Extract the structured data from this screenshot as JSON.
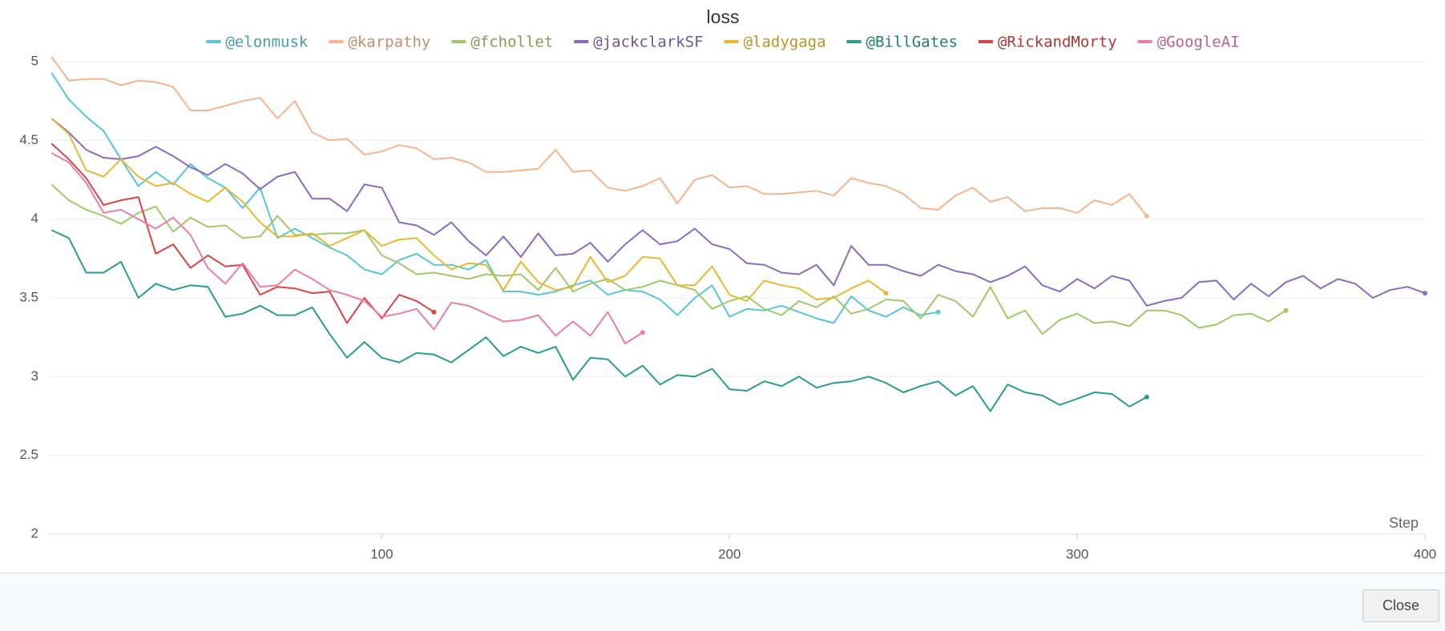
{
  "chart_data": {
    "type": "line",
    "title": "loss",
    "x_label": "Step",
    "x": [
      5,
      10,
      15,
      20,
      25,
      30,
      35,
      40,
      45,
      50,
      55,
      60,
      65,
      70,
      75,
      80,
      85,
      90,
      95,
      100,
      105,
      110,
      115,
      120,
      125,
      130,
      135,
      140,
      145,
      150,
      155,
      160,
      165,
      170,
      175,
      180,
      185,
      190,
      195,
      200,
      205,
      210,
      215,
      220,
      225,
      230,
      235,
      240,
      245,
      250,
      255,
      260,
      265,
      270,
      275,
      280,
      285,
      290,
      295,
      300,
      305,
      310,
      315,
      320,
      325,
      330,
      335,
      340,
      345,
      350,
      355,
      360,
      365,
      370,
      375,
      380,
      385,
      390,
      395,
      400
    ],
    "xlim": [
      0,
      400
    ],
    "xticks": [
      100,
      200,
      300,
      400
    ],
    "ylim": [
      2,
      5
    ],
    "yticks": [
      2,
      2.5,
      3,
      3.5,
      4,
      4.5,
      5
    ],
    "grid": true,
    "series": [
      {
        "name": "@elonmusk",
        "color": "#58c5dc",
        "values": [
          4.93,
          4.76,
          4.65,
          4.56,
          4.38,
          4.21,
          4.3,
          4.22,
          4.35,
          4.26,
          4.2,
          4.07,
          4.2,
          3.88,
          3.94,
          3.88,
          3.82,
          3.77,
          3.68,
          3.65,
          3.74,
          3.78,
          3.71,
          3.71,
          3.68,
          3.74,
          3.54,
          3.54,
          3.52,
          3.54,
          3.58,
          3.61,
          3.52,
          3.55,
          3.54,
          3.49,
          3.39,
          3.5,
          3.58,
          3.38,
          3.43,
          3.42,
          3.45,
          3.41,
          3.37,
          3.34,
          3.51,
          3.42,
          3.38,
          3.44,
          3.39,
          3.41,
          null,
          null,
          null,
          null,
          null,
          null,
          null,
          null,
          null,
          null,
          null,
          null,
          null,
          null,
          null,
          null,
          null,
          null,
          null,
          null,
          null,
          null,
          null,
          null,
          null,
          null,
          null,
          null
        ]
      },
      {
        "name": "@karpathy",
        "color": "#f4b58f",
        "values": [
          5.03,
          4.88,
          4.89,
          4.89,
          4.85,
          4.88,
          4.87,
          4.84,
          4.69,
          4.69,
          4.72,
          4.75,
          4.77,
          4.64,
          4.75,
          4.55,
          4.5,
          4.51,
          4.41,
          4.43,
          4.47,
          4.45,
          4.38,
          4.39,
          4.36,
          4.3,
          4.3,
          4.31,
          4.32,
          4.44,
          4.3,
          4.31,
          4.2,
          4.18,
          4.21,
          4.26,
          4.1,
          4.25,
          4.28,
          4.2,
          4.21,
          4.16,
          4.16,
          4.17,
          4.18,
          4.15,
          4.26,
          4.23,
          4.21,
          4.16,
          4.07,
          4.06,
          4.15,
          4.2,
          4.11,
          4.14,
          4.05,
          4.07,
          4.07,
          4.04,
          4.12,
          4.09,
          4.16,
          4.02,
          null,
          null,
          null,
          null,
          null,
          null,
          null,
          null,
          null,
          null,
          null,
          null,
          null,
          null,
          null,
          null
        ]
      },
      {
        "name": "@fchollet",
        "color": "#a0c96a",
        "values": [
          4.22,
          4.12,
          4.06,
          4.02,
          3.97,
          4.04,
          4.08,
          3.92,
          4.01,
          3.95,
          3.96,
          3.88,
          3.89,
          4.02,
          3.9,
          3.9,
          3.91,
          3.91,
          3.93,
          3.77,
          3.72,
          3.65,
          3.66,
          3.64,
          3.62,
          3.65,
          3.64,
          3.65,
          3.55,
          3.69,
          3.54,
          3.59,
          3.62,
          3.55,
          3.57,
          3.61,
          3.58,
          3.55,
          3.43,
          3.48,
          3.51,
          3.43,
          3.39,
          3.48,
          3.44,
          3.51,
          3.4,
          3.43,
          3.49,
          3.48,
          3.37,
          3.52,
          3.48,
          3.38,
          3.57,
          3.37,
          3.42,
          3.27,
          3.36,
          3.4,
          3.34,
          3.35,
          3.32,
          3.42,
          3.42,
          3.39,
          3.31,
          3.33,
          3.39,
          3.4,
          3.35,
          3.42,
          null,
          null,
          null,
          null,
          null,
          null,
          null,
          null
        ]
      },
      {
        "name": "@jackclarkSF",
        "color": "#8c6bbf",
        "values": [
          4.64,
          4.55,
          4.44,
          4.39,
          4.38,
          4.4,
          4.46,
          4.4,
          4.33,
          4.28,
          4.35,
          4.29,
          4.19,
          4.27,
          4.3,
          4.13,
          4.13,
          4.05,
          4.22,
          4.2,
          3.98,
          3.96,
          3.9,
          3.98,
          3.86,
          3.77,
          3.89,
          3.76,
          3.91,
          3.77,
          3.78,
          3.85,
          3.73,
          3.84,
          3.93,
          3.84,
          3.86,
          3.94,
          3.84,
          3.81,
          3.72,
          3.71,
          3.66,
          3.65,
          3.71,
          3.58,
          3.83,
          3.71,
          3.71,
          3.67,
          3.64,
          3.71,
          3.67,
          3.65,
          3.6,
          3.64,
          3.7,
          3.58,
          3.54,
          3.62,
          3.56,
          3.64,
          3.61,
          3.45,
          3.48,
          3.5,
          3.6,
          3.61,
          3.49,
          3.59,
          3.51,
          3.6,
          3.64,
          3.56,
          3.62,
          3.59,
          3.5,
          3.55,
          3.57,
          3.53
        ]
      },
      {
        "name": "@ladygaga",
        "color": "#e8b92e",
        "values": [
          4.64,
          4.54,
          4.31,
          4.27,
          4.38,
          4.27,
          4.21,
          4.23,
          4.16,
          4.11,
          4.2,
          4.11,
          3.98,
          3.89,
          3.89,
          3.91,
          3.83,
          3.88,
          3.93,
          3.83,
          3.87,
          3.88,
          3.77,
          3.68,
          3.72,
          3.71,
          3.55,
          3.73,
          3.6,
          3.55,
          3.57,
          3.76,
          3.6,
          3.64,
          3.76,
          3.75,
          3.58,
          3.58,
          3.7,
          3.52,
          3.48,
          3.61,
          3.58,
          3.56,
          3.49,
          3.5,
          3.56,
          3.61,
          3.53,
          null,
          null,
          null,
          null,
          null,
          null,
          null,
          null,
          null,
          null,
          null,
          null,
          null,
          null,
          null,
          null,
          null,
          null,
          null,
          null,
          null,
          null,
          null,
          null,
          null,
          null,
          null,
          null,
          null,
          null,
          null
        ]
      },
      {
        "name": "@BillGates",
        "color": "#2a9d8f",
        "values": [
          3.93,
          3.88,
          3.66,
          3.66,
          3.73,
          3.5,
          3.59,
          3.55,
          3.58,
          3.57,
          3.38,
          3.4,
          3.45,
          3.39,
          3.39,
          3.44,
          3.27,
          3.12,
          3.22,
          3.12,
          3.09,
          3.15,
          3.14,
          3.09,
          3.17,
          3.25,
          3.13,
          3.19,
          3.15,
          3.19,
          2.98,
          3.12,
          3.11,
          3.0,
          3.07,
          2.95,
          3.01,
          3.0,
          3.05,
          2.92,
          2.91,
          2.97,
          2.94,
          3.0,
          2.93,
          2.96,
          2.97,
          3.0,
          2.96,
          2.9,
          2.94,
          2.97,
          2.88,
          2.94,
          2.78,
          2.95,
          2.9,
          2.88,
          2.82,
          2.86,
          2.9,
          2.89,
          2.81,
          2.87,
          null,
          null,
          null,
          null,
          null,
          null,
          null,
          null,
          null,
          null,
          null,
          null,
          null,
          null,
          null,
          null
        ]
      },
      {
        "name": "@RickandMorty",
        "color": "#d94444",
        "values": [
          4.48,
          4.38,
          4.26,
          4.09,
          4.12,
          4.14,
          3.78,
          3.84,
          3.69,
          3.77,
          3.7,
          3.71,
          3.52,
          3.57,
          3.56,
          3.53,
          3.54,
          3.34,
          3.5,
          3.37,
          3.52,
          3.48,
          3.41,
          null,
          null,
          null,
          null,
          null,
          null,
          null,
          null,
          null,
          null,
          null,
          null,
          null,
          null,
          null,
          null,
          null,
          null,
          null,
          null,
          null,
          null,
          null,
          null,
          null,
          null,
          null,
          null,
          null,
          null,
          null,
          null,
          null,
          null,
          null,
          null,
          null,
          null,
          null,
          null,
          null,
          null,
          null,
          null,
          null,
          null,
          null,
          null,
          null,
          null,
          null,
          null,
          null,
          null,
          null,
          null,
          null
        ]
      },
      {
        "name": "@GoogleAI",
        "color": "#ea7ea6",
        "values": [
          4.42,
          4.36,
          4.23,
          4.04,
          4.06,
          4.0,
          3.94,
          4.01,
          3.9,
          3.69,
          3.59,
          3.72,
          3.57,
          3.58,
          3.68,
          3.62,
          3.55,
          3.52,
          3.48,
          3.38,
          3.4,
          3.43,
          3.3,
          3.47,
          3.45,
          3.4,
          3.35,
          3.36,
          3.39,
          3.26,
          3.35,
          3.26,
          3.41,
          3.21,
          3.28,
          null,
          null,
          null,
          null,
          null,
          null,
          null,
          null,
          null,
          null,
          null,
          null,
          null,
          null,
          null,
          null,
          null,
          null,
          null,
          null,
          null,
          null,
          null,
          null,
          null,
          null,
          null,
          null,
          null,
          null,
          null,
          null,
          null,
          null,
          null,
          null,
          null,
          null,
          null,
          null,
          null,
          null,
          null,
          null,
          null
        ]
      }
    ]
  },
  "footer": {
    "button": "Close"
  }
}
